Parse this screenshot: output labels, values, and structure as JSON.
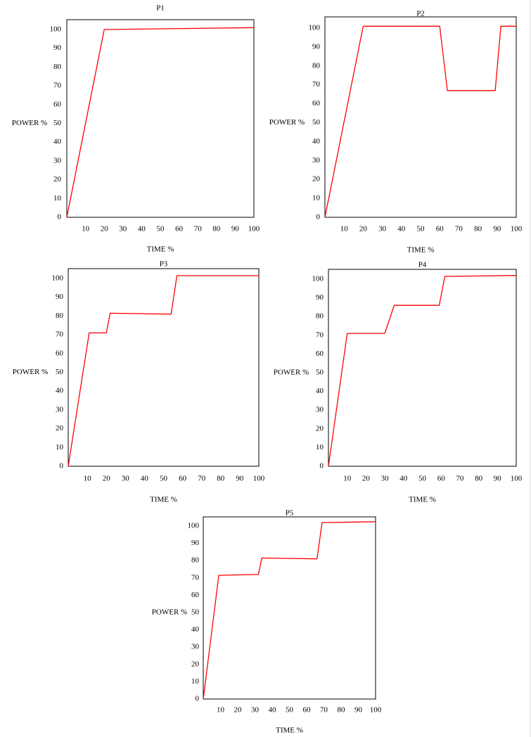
{
  "chart_data": [
    {
      "type": "line",
      "title": "P1",
      "xlabel": "TIME %",
      "ylabel": "POWER %",
      "xlim": [
        0,
        100
      ],
      "ylim": [
        0,
        100
      ],
      "xticks": [
        "10",
        "20",
        "30",
        "40",
        "50",
        "60",
        "70",
        "80",
        "90",
        "100"
      ],
      "yticks": [
        "0",
        "10",
        "20",
        "30",
        "40",
        "50",
        "60",
        "70",
        "80",
        "90",
        "100"
      ],
      "grid": false,
      "color": "#ff0000",
      "series": [
        {
          "name": "P1",
          "x": [
            0,
            20,
            100
          ],
          "y": [
            0,
            100,
            101
          ]
        }
      ]
    },
    {
      "type": "line",
      "title": "P2",
      "xlabel": "TIME %",
      "ylabel": "POWER %",
      "xlim": [
        0,
        100
      ],
      "ylim": [
        0,
        100
      ],
      "xticks": [
        "10",
        "20",
        "30",
        "40",
        "50",
        "60",
        "70",
        "80",
        "90",
        "100"
      ],
      "yticks": [
        "0",
        "10",
        "20",
        "30",
        "40",
        "50",
        "60",
        "70",
        "80",
        "90",
        "100"
      ],
      "grid": false,
      "color": "#ff0000",
      "series": [
        {
          "name": "P2",
          "x": [
            0,
            20,
            60,
            64,
            89,
            92,
            100
          ],
          "y": [
            0,
            101,
            101,
            67,
            67,
            101,
            101
          ]
        }
      ]
    },
    {
      "type": "line",
      "title": "P3",
      "xlabel": "TIME %",
      "ylabel": "POWER %",
      "xlim": [
        0,
        100
      ],
      "ylim": [
        0,
        100
      ],
      "xticks": [
        "10",
        "20",
        "30",
        "40",
        "50",
        "60",
        "70",
        "80",
        "90",
        "100"
      ],
      "yticks": [
        "0",
        "10",
        "20",
        "30",
        "40",
        "50",
        "60",
        "70",
        "80",
        "90",
        "100"
      ],
      "grid": false,
      "color": "#ff0000",
      "series": [
        {
          "name": "P3",
          "x": [
            0,
            11,
            20,
            22,
            54,
            57,
            100
          ],
          "y": [
            0,
            71,
            71,
            81.5,
            81,
            101.5,
            101.5
          ]
        }
      ]
    },
    {
      "type": "line",
      "title": "P4",
      "xlabel": "TIME %",
      "ylabel": "POWER %",
      "xlim": [
        0,
        100
      ],
      "ylim": [
        0,
        100
      ],
      "xticks": [
        "10",
        "20",
        "30",
        "40",
        "50",
        "60",
        "70",
        "80",
        "90",
        "100"
      ],
      "yticks": [
        "0",
        "10",
        "20",
        "30",
        "40",
        "50",
        "60",
        "70",
        "80",
        "90",
        "100"
      ],
      "grid": false,
      "color": "#ff0000",
      "series": [
        {
          "name": "P4",
          "x": [
            0,
            10,
            30,
            35,
            59,
            62,
            100
          ],
          "y": [
            0,
            71,
            71,
            86,
            86,
            101.5,
            102
          ]
        }
      ]
    },
    {
      "type": "line",
      "title": "P5",
      "xlabel": "TIME %",
      "ylabel": "POWER %",
      "xlim": [
        0,
        100
      ],
      "ylim": [
        0,
        100
      ],
      "xticks": [
        "10",
        "20",
        "30",
        "40",
        "50",
        "60",
        "70",
        "80",
        "90",
        "100"
      ],
      "yticks": [
        "0",
        "10",
        "20",
        "30",
        "40",
        "50",
        "60",
        "70",
        "80",
        "90",
        "100"
      ],
      "grid": false,
      "color": "#ff0000",
      "series": [
        {
          "name": "P5",
          "x": [
            0,
            9,
            32,
            34,
            66,
            69,
            100
          ],
          "y": [
            0,
            71.5,
            72,
            81.5,
            81,
            102,
            102.5
          ]
        }
      ]
    }
  ]
}
